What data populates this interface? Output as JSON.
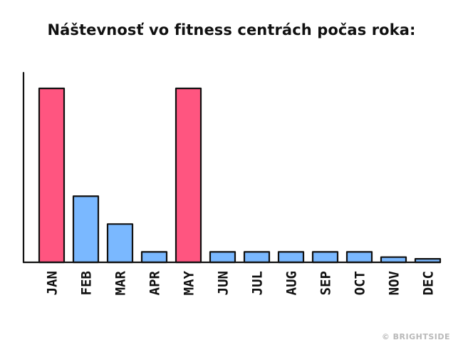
{
  "chart_data": {
    "type": "bar",
    "title": "Náštevnosť vo fitness centrách počas roka:",
    "xlabel": "",
    "ylabel": "",
    "categories": [
      "JAN",
      "FEB",
      "MAR",
      "APR",
      "MAY",
      "JUN",
      "JUL",
      "AUG",
      "SEP",
      "OCT",
      "NOV",
      "DEC"
    ],
    "values": [
      100,
      38,
      22,
      6,
      100,
      6,
      6,
      6,
      6,
      6,
      3,
      2
    ],
    "highlight_categories": [
      "JAN",
      "MAY"
    ],
    "ylim": [
      0,
      100
    ],
    "grid": false,
    "legend": "none"
  },
  "colors": {
    "highlight": "#ff5580",
    "normal": "#7ab8ff",
    "outline": "#111111",
    "axis": "#111111"
  },
  "watermark": "© BRIGHTSIDE"
}
